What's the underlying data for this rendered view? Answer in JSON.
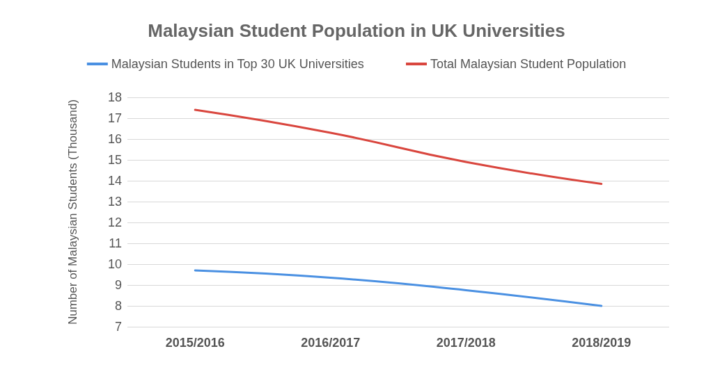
{
  "chart_data": {
    "type": "line",
    "title": "Malaysian Student Population in UK Universities",
    "ylabel": "Number of Malaysian Students (Thousand)",
    "categories": [
      "2015/2016",
      "2016/2017",
      "2017/2018",
      "2018/2019"
    ],
    "series": [
      {
        "name": "Malaysian Students in Top 30 UK Universities",
        "color": "#4a90e2",
        "values": [
          9.7,
          9.35,
          8.75,
          8.0
        ]
      },
      {
        "name": "Total Malaysian Student Population",
        "color": "#d9463e",
        "values": [
          17.4,
          16.3,
          14.9,
          13.85
        ]
      }
    ],
    "ylim": [
      7,
      18
    ],
    "yticks": [
      7,
      8,
      9,
      10,
      11,
      12,
      13,
      14,
      15,
      16,
      17,
      18
    ],
    "grid": "y",
    "legend": "top",
    "marker": "none",
    "line_style": "solid"
  }
}
